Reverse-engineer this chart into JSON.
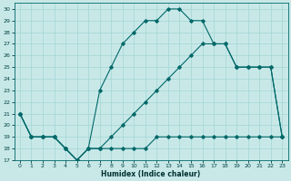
{
  "xlabel": "Humidex (Indice chaleur)",
  "bg_color": "#c8e8e8",
  "grid_color": "#a8d8d8",
  "line_color": "#006868",
  "xlim": [
    -0.5,
    23.5
  ],
  "ylim": [
    17,
    30.5
  ],
  "xticks": [
    0,
    1,
    2,
    3,
    4,
    5,
    6,
    7,
    8,
    9,
    10,
    11,
    12,
    13,
    14,
    15,
    16,
    17,
    18,
    19,
    20,
    21,
    22,
    23
  ],
  "yticks": [
    17,
    18,
    19,
    20,
    21,
    22,
    23,
    24,
    25,
    26,
    27,
    28,
    29,
    30
  ],
  "series1_x": [
    0,
    1,
    2,
    3,
    4,
    5,
    6,
    7,
    8,
    9,
    10,
    11,
    12,
    13,
    14,
    15,
    16,
    17,
    18,
    19,
    20,
    21,
    22,
    23
  ],
  "series1_y": [
    21,
    19,
    19,
    19,
    18,
    17,
    18,
    18,
    18,
    18,
    18,
    18,
    19,
    19,
    19,
    19,
    19,
    19,
    19,
    19,
    19,
    19,
    19,
    19
  ],
  "series2_x": [
    0,
    1,
    2,
    3,
    4,
    5,
    6,
    7,
    8,
    9,
    10,
    11,
    12,
    13,
    14,
    15,
    16,
    17,
    18,
    19,
    20,
    21,
    22,
    23
  ],
  "series2_y": [
    21,
    19,
    19,
    19,
    18,
    17,
    18,
    23,
    25,
    27,
    28,
    29,
    29,
    30,
    30,
    29,
    29,
    27,
    27,
    25,
    25,
    25,
    25,
    19
  ],
  "series3_x": [
    0,
    1,
    2,
    3,
    4,
    5,
    6,
    7,
    8,
    9,
    10,
    11,
    12,
    13,
    14,
    15,
    16,
    17,
    18,
    19,
    20,
    21,
    22,
    23
  ],
  "series3_y": [
    21,
    19,
    19,
    19,
    18,
    17,
    18,
    18,
    19,
    20,
    21,
    22,
    23,
    24,
    25,
    26,
    27,
    27,
    27,
    25,
    25,
    25,
    25,
    19
  ]
}
